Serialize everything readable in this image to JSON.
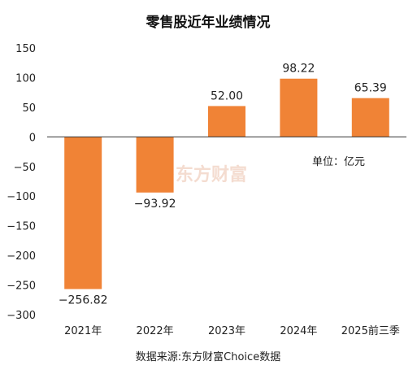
{
  "chart_data": {
    "type": "bar",
    "title": "零售股近年业绩情况",
    "categories": [
      "2021年",
      "2022年",
      "2023年",
      "2024年",
      "2025前三季"
    ],
    "values": [
      -256.82,
      -93.92,
      52.0,
      98.22,
      65.39
    ],
    "value_labels": [
      "−256.82",
      "−93.92",
      "52.00",
      "98.22",
      "65.39"
    ],
    "ylim": [
      -300,
      150
    ],
    "yticks": [
      150,
      100,
      50,
      0,
      -50,
      -100,
      -150,
      -200,
      -250,
      -300
    ],
    "ytick_labels": [
      "150",
      "100",
      "50",
      "0",
      "−50",
      "−100",
      "−150",
      "−200",
      "−250",
      "−300"
    ],
    "unit_label": "单位：亿元",
    "source": "数据来源:东方财富Choice数据",
    "watermark": "东方财富",
    "bar_color": "#F08336",
    "grid": false,
    "legend": "none"
  }
}
